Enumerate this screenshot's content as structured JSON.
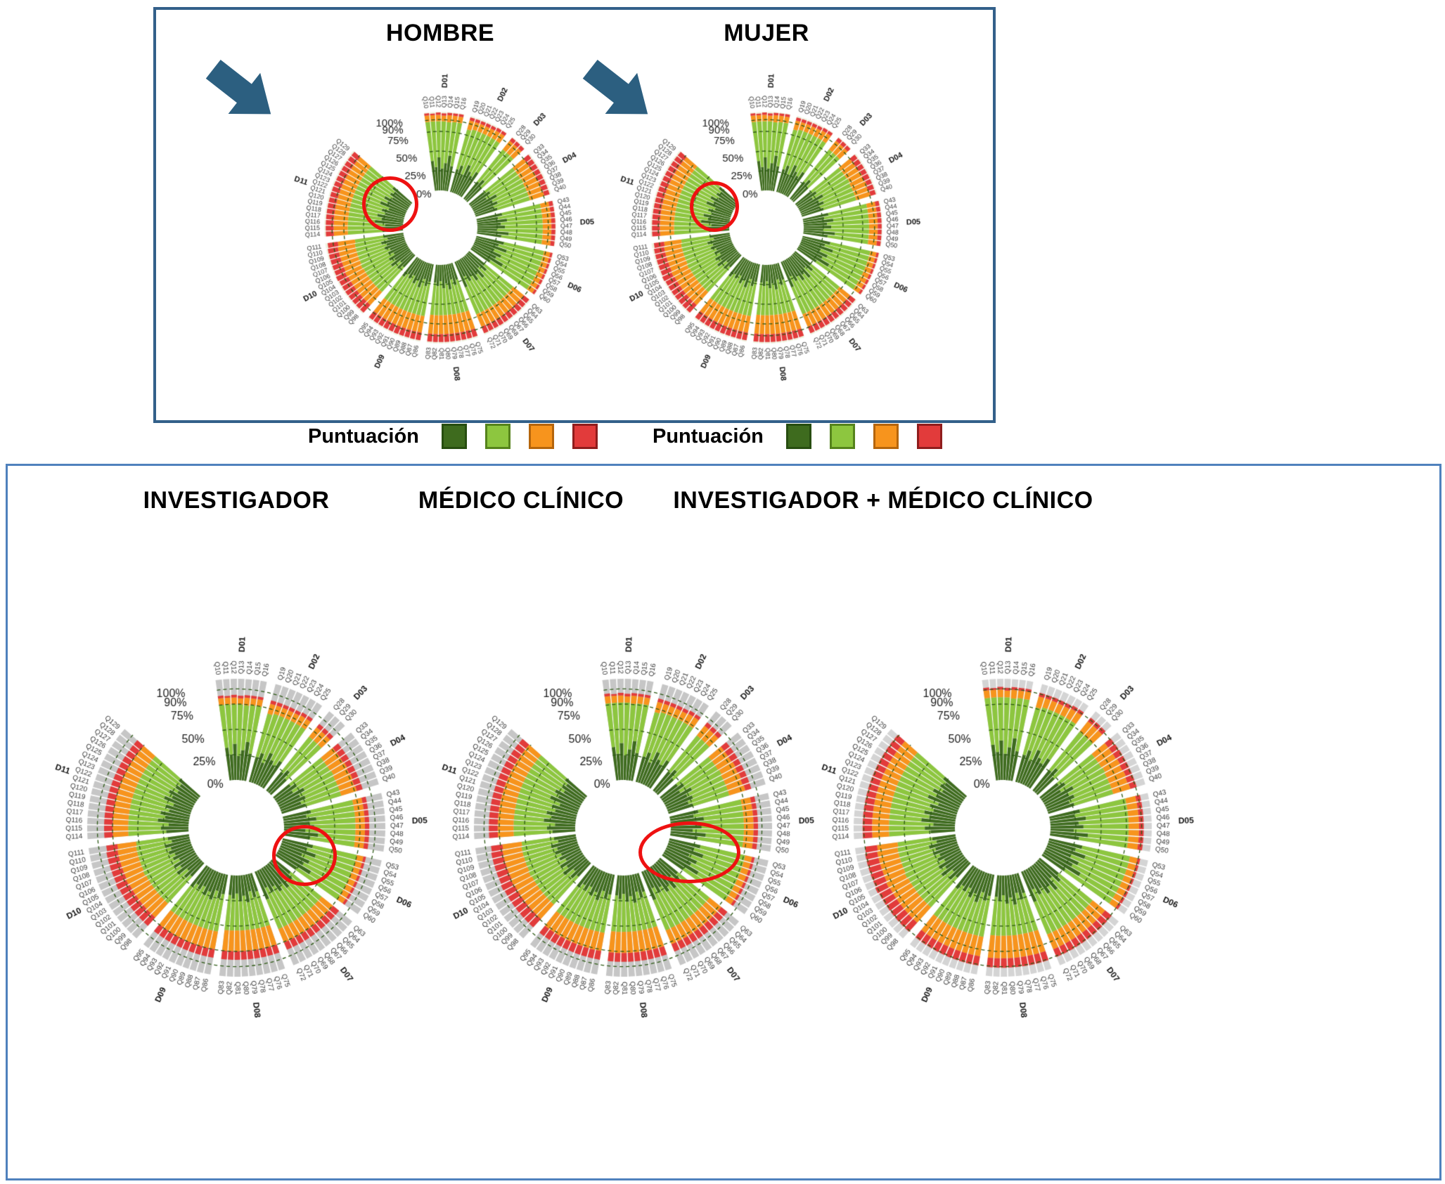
{
  "legend": {
    "label": "Puntuación"
  },
  "chart_data": {
    "type": "radial-stacked-bar",
    "description": "Circular stacked bar charts of questionnaire scores (Q10-Q129) grouped in domains D01-D11, percentage scale 0-100%.",
    "radial_axis": {
      "ticks": [
        "100%",
        "90%",
        "75%",
        "50%",
        "25%",
        "0%"
      ],
      "tick_values": [
        100,
        90,
        75,
        50,
        25,
        0
      ],
      "grid": [
        90,
        75,
        50,
        25
      ]
    },
    "score_colors": [
      "#3e6b1e",
      "#8dc63f",
      "#f7941d",
      "#e23b3b"
    ],
    "score_border_colors": [
      "#274d10",
      "#55831c",
      "#b5650c",
      "#8f1d1d"
    ],
    "domains": [
      {
        "id": "D01",
        "questions": [
          "Q10",
          "Q11",
          "Q12",
          "Q13",
          "Q14",
          "Q15",
          "Q16"
        ]
      },
      {
        "id": "D02",
        "questions": [
          "Q19",
          "Q20",
          "Q21",
          "Q22",
          "Q23",
          "Q24",
          "Q25"
        ]
      },
      {
        "id": "D03",
        "questions": [
          "Q28",
          "Q29",
          "Q30"
        ]
      },
      {
        "id": "D04",
        "questions": [
          "Q33",
          "Q34",
          "Q35",
          "Q36",
          "Q37",
          "Q38",
          "Q39",
          "Q40"
        ]
      },
      {
        "id": "D05",
        "questions": [
          "Q43",
          "Q44",
          "Q45",
          "Q46",
          "Q47",
          "Q48",
          "Q49",
          "Q50"
        ]
      },
      {
        "id": "D06",
        "questions": [
          "Q53",
          "Q54",
          "Q55",
          "Q56",
          "Q57",
          "Q58",
          "Q59",
          "Q60"
        ]
      },
      {
        "id": "D07",
        "questions": [
          "Q63",
          "Q64",
          "Q65",
          "Q66",
          "Q67",
          "Q68",
          "Q69",
          "Q70",
          "Q71",
          "Q72"
        ]
      },
      {
        "id": "D08",
        "questions": [
          "Q75",
          "Q76",
          "Q77",
          "Q78",
          "Q79",
          "Q80",
          "Q81",
          "Q82",
          "Q83"
        ]
      },
      {
        "id": "D09",
        "questions": [
          "Q86",
          "Q87",
          "Q88",
          "Q89",
          "Q90",
          "Q91",
          "Q92",
          "Q93",
          "Q94",
          "Q95"
        ]
      },
      {
        "id": "D10",
        "questions": [
          "Q98",
          "Q99",
          "Q100",
          "Q101",
          "Q102",
          "Q103",
          "Q104",
          "Q105",
          "Q106",
          "Q107",
          "Q108",
          "Q109",
          "Q110",
          "Q111"
        ]
      },
      {
        "id": "D11",
        "questions": [
          "Q114",
          "Q115",
          "Q116",
          "Q117",
          "Q118",
          "Q119",
          "Q120",
          "Q121",
          "Q122",
          "Q123",
          "Q124",
          "Q125",
          "Q126",
          "Q127",
          "Q128",
          "Q129"
        ]
      }
    ],
    "values": {
      "D01": [
        [
          38,
          50,
          8,
          3
        ],
        [
          30,
          58,
          8,
          2
        ],
        [
          42,
          46,
          8,
          3
        ],
        [
          28,
          60,
          7,
          3
        ],
        [
          35,
          52,
          9,
          3
        ],
        [
          45,
          43,
          8,
          3
        ],
        [
          32,
          56,
          8,
          3
        ]
      ],
      "D02": [
        [
          30,
          52,
          12,
          4
        ],
        [
          36,
          48,
          10,
          4
        ],
        [
          26,
          58,
          10,
          4
        ],
        [
          40,
          44,
          10,
          4
        ],
        [
          33,
          51,
          10,
          4
        ],
        [
          29,
          55,
          11,
          4
        ],
        [
          37,
          47,
          11,
          4
        ]
      ],
      "D03": [
        [
          28,
          52,
          14,
          5
        ],
        [
          34,
          46,
          14,
          5
        ],
        [
          25,
          55,
          14,
          5
        ]
      ],
      "D04": [
        [
          24,
          48,
          18,
          8
        ],
        [
          30,
          42,
          18,
          8
        ],
        [
          22,
          50,
          18,
          8
        ],
        [
          35,
          38,
          18,
          7
        ],
        [
          27,
          45,
          18,
          8
        ],
        [
          32,
          40,
          19,
          7
        ],
        [
          25,
          47,
          18,
          8
        ],
        [
          29,
          43,
          19,
          7
        ]
      ],
      "D05": [
        [
          33,
          50,
          11,
          5
        ],
        [
          27,
          56,
          11,
          5
        ],
        [
          38,
          45,
          11,
          5
        ],
        [
          30,
          53,
          11,
          5
        ],
        [
          35,
          48,
          11,
          5
        ],
        [
          25,
          58,
          11,
          5
        ],
        [
          40,
          43,
          11,
          5
        ],
        [
          31,
          52,
          11,
          5
        ]
      ],
      "D06": [
        [
          36,
          52,
          8,
          3
        ],
        [
          30,
          58,
          8,
          3
        ],
        [
          42,
          46,
          8,
          3
        ],
        [
          27,
          61,
          8,
          3
        ],
        [
          38,
          50,
          8,
          3
        ],
        [
          33,
          55,
          8,
          3
        ],
        [
          45,
          43,
          8,
          3
        ],
        [
          29,
          59,
          8,
          3
        ]
      ],
      "D07": [
        [
          26,
          46,
          17,
          9
        ],
        [
          32,
          40,
          17,
          9
        ],
        [
          23,
          49,
          17,
          9
        ],
        [
          36,
          36,
          17,
          9
        ],
        [
          28,
          44,
          17,
          9
        ],
        [
          34,
          38,
          17,
          9
        ],
        [
          25,
          47,
          17,
          9
        ],
        [
          30,
          42,
          17,
          9
        ],
        [
          22,
          50,
          17,
          9
        ],
        [
          35,
          37,
          17,
          9
        ]
      ],
      "D08": [
        [
          22,
          42,
          24,
          10
        ],
        [
          28,
          36,
          24,
          10
        ],
        [
          20,
          44,
          24,
          10
        ],
        [
          32,
          32,
          24,
          10
        ],
        [
          24,
          40,
          24,
          10
        ],
        [
          30,
          34,
          24,
          10
        ],
        [
          21,
          43,
          24,
          10
        ],
        [
          27,
          37,
          24,
          10
        ],
        [
          23,
          41,
          24,
          10
        ]
      ],
      "D09": [
        [
          23,
          44,
          21,
          10
        ],
        [
          29,
          38,
          21,
          10
        ],
        [
          21,
          46,
          21,
          10
        ],
        [
          33,
          34,
          21,
          10
        ],
        [
          25,
          42,
          21,
          10
        ],
        [
          31,
          36,
          21,
          10
        ],
        [
          22,
          45,
          21,
          10
        ],
        [
          28,
          39,
          21,
          10
        ],
        [
          24,
          43,
          21,
          10
        ],
        [
          30,
          37,
          21,
          10
        ]
      ],
      "D10": [
        [
          21,
          42,
          22,
          13
        ],
        [
          27,
          36,
          22,
          13
        ],
        [
          19,
          44,
          22,
          13
        ],
        [
          31,
          32,
          22,
          13
        ],
        [
          23,
          40,
          22,
          13
        ],
        [
          29,
          34,
          22,
          13
        ],
        [
          20,
          43,
          22,
          13
        ],
        [
          26,
          38,
          22,
          13
        ],
        [
          22,
          41,
          22,
          13
        ],
        [
          28,
          35,
          22,
          13
        ],
        [
          24,
          39,
          22,
          13
        ],
        [
          30,
          33,
          22,
          13
        ],
        [
          21,
          42,
          22,
          13
        ],
        [
          25,
          37,
          22,
          13
        ]
      ],
      "D11": [
        [
          26,
          44,
          18,
          10
        ],
        [
          32,
          38,
          18,
          10
        ],
        [
          23,
          47,
          18,
          10
        ],
        [
          36,
          34,
          18,
          10
        ],
        [
          28,
          42,
          18,
          10
        ],
        [
          34,
          36,
          18,
          10
        ],
        [
          25,
          45,
          18,
          10
        ],
        [
          30,
          40,
          18,
          10
        ],
        [
          22,
          48,
          18,
          10
        ],
        [
          35,
          35,
          18,
          10
        ],
        [
          27,
          43,
          18,
          10
        ],
        [
          33,
          37,
          18,
          10
        ],
        [
          24,
          46,
          18,
          10
        ],
        [
          29,
          41,
          18,
          10
        ],
        [
          26,
          44,
          18,
          10
        ],
        [
          31,
          39,
          18,
          10
        ]
      ]
    },
    "charts": [
      {
        "id": "hombre",
        "title": "HOMBRE",
        "panel": "top",
        "arrow": true,
        "track_color": "#eef2df",
        "value_scale": 1.0,
        "annotation": {
          "shape": "circle",
          "cx": 0.373,
          "cy": 0.424,
          "rx": 0.071,
          "ry": 0.075
        }
      },
      {
        "id": "mujer",
        "title": "MUJER",
        "panel": "top",
        "arrow": true,
        "track_color": "#eef2df",
        "value_scale": 1.0,
        "annotation": {
          "shape": "circle",
          "cx": 0.368,
          "cy": 0.43,
          "rx": 0.062,
          "ry": 0.068
        }
      },
      {
        "id": "investigador",
        "title": "INVESTIGADOR",
        "panel": "bottom",
        "arrow": false,
        "track_color": "#c6c6c6",
        "value_scale": 0.85,
        "annotation": {
          "shape": "circle",
          "cx": 0.639,
          "cy": 0.556,
          "rx": 0.066,
          "ry": 0.062
        }
      },
      {
        "id": "medico",
        "title": "MÉDICO CLÍNICO",
        "panel": "bottom",
        "arrow": false,
        "track_color": "#c6c6c6",
        "value_scale": 0.87,
        "annotation": {
          "shape": "ellipse",
          "cx": 0.635,
          "cy": 0.55,
          "rx": 0.103,
          "ry": 0.063
        }
      },
      {
        "id": "combinado",
        "title": "INVESTIGADOR + MÉDICO CLÍNICO",
        "panel": "bottom",
        "arrow": false,
        "track_color": "#d4d4d4",
        "value_scale": 0.93,
        "annotation": null
      }
    ]
  }
}
